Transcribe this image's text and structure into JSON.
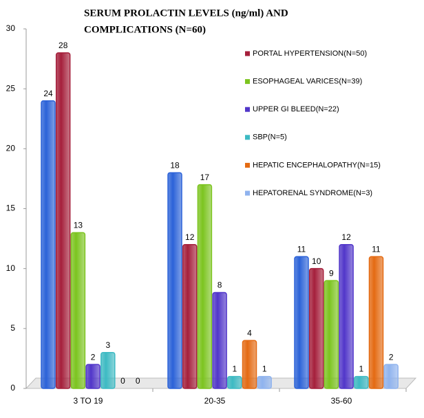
{
  "chart_data": {
    "type": "bar",
    "title": [
      "SERUM PROLACTIN  LEVELS  (ng/ml) AND",
      "COMPLICATIONS  (N=60)"
    ],
    "categories": [
      "3 TO 19",
      "20-35",
      "35-60"
    ],
    "series": [
      {
        "name": null,
        "color": "#2b62d8",
        "values": [
          24,
          18,
          11
        ]
      },
      {
        "name": "PORTAL HYPERTENSION(N=50)",
        "color": "#a51f3b",
        "values": [
          28,
          12,
          10
        ]
      },
      {
        "name": "ESOPHAGEAL VARICES(N=39)",
        "color": "#7cc41f",
        "values": [
          13,
          17,
          9
        ]
      },
      {
        "name": "UPPER GI BLEED(N=22)",
        "color": "#5136c9",
        "values": [
          2,
          8,
          12
        ]
      },
      {
        "name": "SBP(N=5)",
        "color": "#3dbac3",
        "values": [
          3,
          1,
          1
        ]
      },
      {
        "name": "HEPATIC ENCEPHALOPATHY(N=15)",
        "color": "#e46a12",
        "values": [
          0,
          4,
          11
        ]
      },
      {
        "name": "HEPATORENAL SYNDROME(N=3)",
        "color": "#8fb3ee",
        "values": [
          0,
          1,
          2
        ]
      }
    ],
    "ylim": [
      0,
      30
    ],
    "yticks": [
      0,
      5,
      10,
      15,
      20,
      25,
      30
    ]
  }
}
